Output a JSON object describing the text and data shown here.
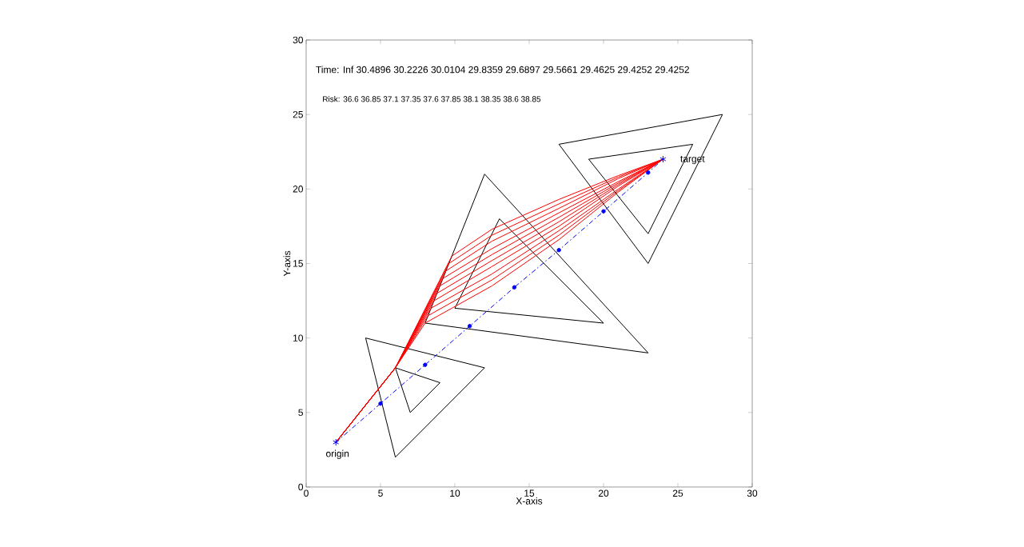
{
  "chart_data": {
    "type": "line",
    "xlabel": "X-axis",
    "ylabel": "Y-axis",
    "xlim": [
      0,
      30
    ],
    "ylim": [
      0,
      30
    ],
    "xticks": [
      0,
      5,
      10,
      15,
      20,
      25,
      30
    ],
    "yticks": [
      0,
      5,
      10,
      15,
      20,
      25,
      30
    ],
    "grid": false,
    "annotations": [
      "Time: Inf 30.4896 30.2226 30.0104 29.8359 29.6897 29.5661 29.4625 29.4252 29.4252",
      "Risk: 36.6 36.85 37.1 37.35 37.6 37.85 38.1 38.35 38.6 38.85",
      {
        "text": "origin",
        "x": 2,
        "y": 3
      },
      {
        "text": "target",
        "x": 24,
        "y": 22
      }
    ],
    "series": [
      {
        "color": "#000000",
        "marker": "none",
        "x": [
          4,
          12
        ],
        "values": [
          10,
          8
        ]
      },
      {
        "color": "#000000",
        "marker": "none",
        "x": [
          6,
          12
        ],
        "values": [
          2,
          8
        ]
      },
      {
        "color": "#000000",
        "marker": "none",
        "x": [
          4,
          6
        ],
        "values": [
          10,
          2
        ]
      },
      {
        "color": "#000000",
        "marker": "none",
        "x": [
          6,
          9
        ],
        "values": [
          8,
          7
        ]
      },
      {
        "color": "#000000",
        "marker": "none",
        "x": [
          7,
          9
        ],
        "values": [
          5,
          7
        ]
      },
      {
        "color": "#000000",
        "marker": "none",
        "x": [
          6,
          7
        ],
        "values": [
          8,
          5
        ]
      },
      {
        "color": "#000000",
        "marker": "none",
        "x": [
          12,
          23
        ],
        "values": [
          21,
          9
        ]
      },
      {
        "color": "#000000",
        "marker": "none",
        "x": [
          8,
          23
        ],
        "values": [
          11,
          9
        ]
      },
      {
        "color": "#000000",
        "marker": "none",
        "x": [
          8,
          12
        ],
        "values": [
          11,
          21
        ]
      },
      {
        "color": "#000000",
        "marker": "none",
        "x": [
          13,
          20
        ],
        "values": [
          18,
          11
        ]
      },
      {
        "color": "#000000",
        "marker": "none",
        "x": [
          10,
          20
        ],
        "values": [
          12,
          11
        ]
      },
      {
        "color": "#000000",
        "marker": "none",
        "x": [
          10,
          13
        ],
        "values": [
          12,
          18
        ]
      },
      {
        "color": "#000000",
        "marker": "none",
        "x": [
          17,
          28
        ],
        "values": [
          23,
          25
        ]
      },
      {
        "color": "#000000",
        "marker": "none",
        "x": [
          23,
          28
        ],
        "values": [
          15,
          25
        ]
      },
      {
        "color": "#000000",
        "marker": "none",
        "x": [
          17,
          23
        ],
        "values": [
          23,
          15
        ]
      },
      {
        "color": "#000000",
        "marker": "none",
        "x": [
          19,
          26
        ],
        "values": [
          22,
          23
        ]
      },
      {
        "color": "#000000",
        "marker": "none",
        "x": [
          23,
          26
        ],
        "values": [
          17,
          23
        ]
      },
      {
        "color": "#000000",
        "marker": "none",
        "x": [
          19,
          23
        ],
        "values": [
          22,
          17
        ]
      },
      {
        "color": "#0000ff",
        "marker": "circle",
        "line_style": "dashdot",
        "x": [
          2,
          5,
          8,
          11,
          14,
          17,
          20,
          23,
          24
        ],
        "values": [
          3,
          5.6,
          8.2,
          10.8,
          13.4,
          15.9,
          18.5,
          21.1,
          22
        ]
      },
      {
        "color": "#ff0000",
        "marker": "none",
        "x": [
          2,
          6,
          8,
          12.5,
          17,
          21,
          24
        ],
        "values": [
          3,
          8,
          11,
          13.5,
          16.6,
          19.8,
          22
        ]
      },
      {
        "color": "#ff0000",
        "marker": "none",
        "x": [
          2,
          6,
          8.2,
          12.5,
          17,
          21,
          24
        ],
        "values": [
          3,
          8,
          11.5,
          13.9,
          16.9,
          19.9,
          22
        ]
      },
      {
        "color": "#ff0000",
        "marker": "none",
        "x": [
          2,
          6,
          8.4,
          12.5,
          17,
          21,
          24
        ],
        "values": [
          3,
          8,
          12,
          14.3,
          17.2,
          20.0,
          22
        ]
      },
      {
        "color": "#ff0000",
        "marker": "none",
        "x": [
          2,
          6,
          8.6,
          12.5,
          17,
          21,
          24
        ],
        "values": [
          3,
          8,
          12.5,
          14.8,
          17.5,
          20.2,
          22
        ]
      },
      {
        "color": "#ff0000",
        "marker": "none",
        "x": [
          2,
          6,
          8.8,
          12.5,
          17,
          21,
          24
        ],
        "values": [
          3,
          8,
          13,
          15.2,
          17.8,
          20.3,
          22
        ]
      },
      {
        "color": "#ff0000",
        "marker": "none",
        "x": [
          2,
          6,
          9,
          12.5,
          17,
          21,
          24
        ],
        "values": [
          3,
          8,
          13.5,
          15.6,
          18.1,
          20.4,
          22
        ]
      },
      {
        "color": "#ff0000",
        "marker": "none",
        "x": [
          2,
          6,
          9.2,
          12.5,
          17,
          21,
          24
        ],
        "values": [
          3,
          8,
          14,
          16.0,
          18.4,
          20.5,
          22
        ]
      },
      {
        "color": "#ff0000",
        "marker": "none",
        "x": [
          2,
          6,
          9.4,
          12.5,
          17,
          21,
          24
        ],
        "values": [
          3,
          8,
          14.5,
          16.5,
          18.7,
          20.7,
          22
        ]
      },
      {
        "color": "#ff0000",
        "marker": "none",
        "x": [
          2,
          6,
          9.6,
          12.5,
          17,
          21,
          24
        ],
        "values": [
          3,
          8,
          15,
          16.9,
          19.0,
          20.8,
          22
        ]
      },
      {
        "color": "#ff0000",
        "marker": "none",
        "x": [
          2,
          6,
          9.8,
          12.5,
          17,
          21,
          24
        ],
        "values": [
          3,
          8,
          15.5,
          17.3,
          19.3,
          20.9,
          22
        ]
      },
      {
        "type": "scatter",
        "color": "#0000ff",
        "marker": "cross",
        "x": [
          2,
          24
        ],
        "values": [
          3,
          22
        ]
      }
    ]
  }
}
